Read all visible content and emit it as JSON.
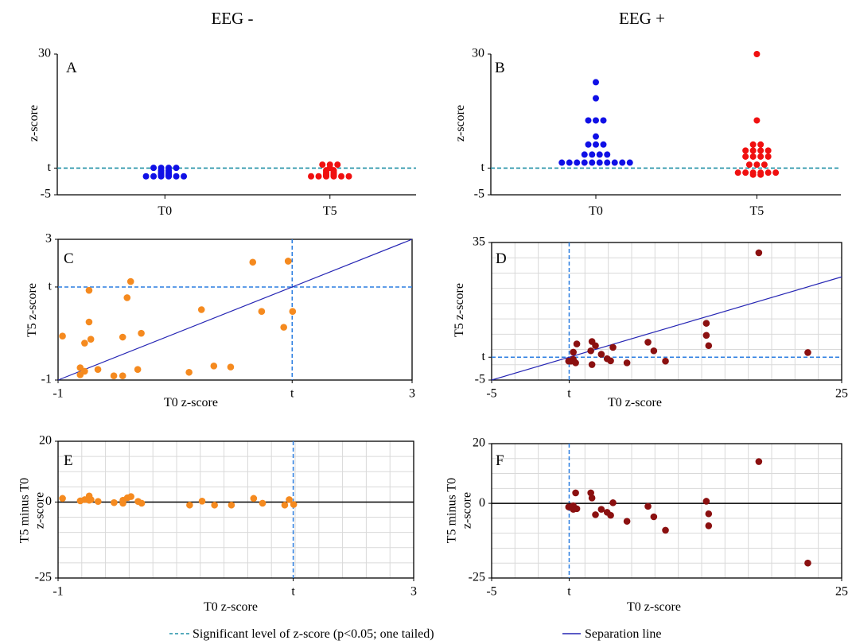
{
  "column_titles": [
    "EEG -",
    "EEG +"
  ],
  "legend": {
    "dashed_label": "Significant level of z-score (p<0.05; one tailed)",
    "solid_label": "Separation line",
    "dashed_color": "#1f8fa5",
    "solid_color": "#2525b4"
  },
  "colors": {
    "t0_blue": "#1010e6",
    "t5_red": "#f01010",
    "orange": "#f58a1f",
    "darkred": "#8b1010",
    "threshold_dashed": "#2a7de1",
    "separation": "#2525b4"
  },
  "chart_data": [
    {
      "panel": "A",
      "type": "scatter",
      "categories": [
        "T0",
        "T5"
      ],
      "ylabel": "z-score",
      "ylim": [
        -5,
        30
      ],
      "yticks": [
        "30",
        "t",
        "-5"
      ],
      "threshold_tick": "t",
      "threshold_value": 1.645,
      "threshold_line": "horizontal",
      "grid": false,
      "series": [
        {
          "category": "T0",
          "color": "#1010e6",
          "values": [
            1.1,
            0.7,
            0.3,
            0,
            -0.2,
            -0.3,
            -0.4,
            -0.4,
            -0.4,
            -0.4,
            -0.4,
            -0.4,
            -0.3,
            -0.2,
            0,
            0.3,
            0.7,
            1.1,
            1.7,
            1.7,
            1.7,
            1.7
          ]
        },
        {
          "category": "T5",
          "color": "#f01010",
          "values": [
            1.1,
            0.7,
            0.3,
            0,
            -0.2,
            -0.3,
            -0.4,
            -0.4,
            -0.4,
            -0.4,
            -0.4,
            -0.4,
            -0.3,
            -0.2,
            0,
            0.3,
            0.7,
            1.1,
            1.7,
            2.5,
            2.5,
            2.5
          ]
        }
      ]
    },
    {
      "panel": "B",
      "type": "scatter",
      "categories": [
        "T0",
        "T5"
      ],
      "ylabel": "z-score",
      "ylim": [
        -5,
        30
      ],
      "yticks": [
        "30",
        "t",
        "-5"
      ],
      "threshold_tick": "t",
      "threshold_value": 1.645,
      "threshold_line": "horizontal",
      "grid": false,
      "series": [
        {
          "category": "T0",
          "color": "#1010e6",
          "values": [
            23,
            19,
            13.5,
            13.5,
            13.5,
            9.5,
            7.5,
            7.5,
            7.5,
            5,
            5,
            5,
            5,
            3,
            3,
            3,
            3,
            3,
            3,
            3,
            3,
            3,
            3
          ]
        },
        {
          "category": "T5",
          "color": "#f01010",
          "values": [
            30,
            13.5,
            7.5,
            7.5,
            6,
            6,
            6,
            6,
            4.5,
            4.5,
            4.5,
            4.5,
            2.5,
            2.5,
            2.5,
            0.5,
            0.5,
            0.5,
            0.5,
            0.5,
            0.5,
            0,
            0
          ]
        }
      ]
    },
    {
      "panel": "C",
      "type": "scatter",
      "xlabel": "T0  z-score",
      "ylabel": "T5  z-score",
      "xlim": [
        -1,
        3
      ],
      "ylim": [
        -1,
        3
      ],
      "xticks": [
        "-1",
        "t",
        "3"
      ],
      "yticks": [
        "3",
        "t",
        "-1"
      ],
      "threshold_tick": "t",
      "threshold_value": 1.645,
      "separation_line": "y = x",
      "grid": false,
      "color": "#f58a1f",
      "points": [
        [
          -0.95,
          0.25
        ],
        [
          -0.75,
          -0.65
        ],
        [
          -0.7,
          0.05
        ],
        [
          -0.75,
          -0.85
        ],
        [
          -0.7,
          -0.75
        ],
        [
          -0.65,
          1.55
        ],
        [
          -0.65,
          0.65
        ],
        [
          -0.63,
          0.16
        ],
        [
          -0.55,
          -0.7
        ],
        [
          -0.37,
          -0.88
        ],
        [
          -0.27,
          0.22
        ],
        [
          -0.27,
          -0.88
        ],
        [
          -0.22,
          1.34
        ],
        [
          -0.18,
          1.8
        ],
        [
          -0.1,
          -0.7
        ],
        [
          -0.06,
          0.33
        ],
        [
          0.48,
          -0.78
        ],
        [
          0.62,
          1.0
        ],
        [
          0.76,
          -0.6
        ],
        [
          0.95,
          -0.63
        ],
        [
          1.2,
          2.35
        ],
        [
          1.3,
          0.95
        ],
        [
          1.55,
          0.5
        ],
        [
          1.6,
          2.38
        ],
        [
          1.6,
          2.38
        ],
        [
          1.65,
          0.95
        ]
      ]
    },
    {
      "panel": "D",
      "type": "scatter",
      "xlabel": "T0  z-score",
      "ylabel": "T5  z-score",
      "xlim": [
        -5,
        25
      ],
      "ylim": [
        -5,
        35
      ],
      "xticks": [
        "-5",
        "t",
        "25"
      ],
      "yticks": [
        "35",
        "t",
        "-5"
      ],
      "threshold_tick": "t",
      "threshold_value": 1.645,
      "separation_line": "y = x",
      "grid": true,
      "color": "#8b1010",
      "points": [
        [
          1.6,
          0.5
        ],
        [
          1.8,
          0.5
        ],
        [
          2.0,
          1.0
        ],
        [
          2.0,
          3.1
        ],
        [
          2.2,
          0.0
        ],
        [
          2.3,
          5.5
        ],
        [
          3.5,
          3.5
        ],
        [
          3.6,
          6.2
        ],
        [
          3.6,
          -0.5
        ],
        [
          3.9,
          5.0
        ],
        [
          4.4,
          2.5
        ],
        [
          4.9,
          1.2
        ],
        [
          5.2,
          0.6
        ],
        [
          5.4,
          4.5
        ],
        [
          6.6,
          0.0
        ],
        [
          8.4,
          6.0
        ],
        [
          8.9,
          3.5
        ],
        [
          9.9,
          0.5
        ],
        [
          13.4,
          11.5
        ],
        [
          13.4,
          8.0
        ],
        [
          13.6,
          5.0
        ],
        [
          17.9,
          32.0
        ],
        [
          22.1,
          3.0
        ]
      ]
    },
    {
      "panel": "E",
      "type": "scatter",
      "xlabel": "T0  z-score",
      "ylabel": "T5 minus T0 z-score",
      "xlim": [
        -1,
        3
      ],
      "ylim": [
        -25,
        20
      ],
      "xticks": [
        "-1",
        "t",
        "3"
      ],
      "yticks": [
        "20",
        "0",
        "-25"
      ],
      "threshold_tick": "t",
      "threshold_value": 1.645,
      "zero_line": true,
      "grid": true,
      "color": "#f58a1f",
      "points": [
        [
          -0.95,
          1.2
        ],
        [
          -0.75,
          0.4
        ],
        [
          -0.7,
          0.8
        ],
        [
          -0.65,
          0.6
        ],
        [
          -0.65,
          2.0
        ],
        [
          -0.63,
          0.8
        ],
        [
          -0.55,
          0.2
        ],
        [
          -0.37,
          -0.2
        ],
        [
          -0.27,
          -0.4
        ],
        [
          -0.27,
          0.6
        ],
        [
          -0.22,
          1.4
        ],
        [
          -0.18,
          1.8
        ],
        [
          -0.1,
          0.2
        ],
        [
          -0.06,
          -0.4
        ],
        [
          0.48,
          -1.0
        ],
        [
          0.62,
          0.3
        ],
        [
          0.76,
          -1.0
        ],
        [
          0.95,
          -1.0
        ],
        [
          1.2,
          1.2
        ],
        [
          1.3,
          -0.4
        ],
        [
          1.55,
          -1.0
        ],
        [
          1.6,
          0.8
        ],
        [
          1.65,
          -0.8
        ]
      ]
    },
    {
      "panel": "F",
      "type": "scatter",
      "xlabel": "T0  z-score",
      "ylabel": "T5 minus T0 z-score",
      "xlim": [
        -5,
        25
      ],
      "ylim": [
        -25,
        20
      ],
      "xticks": [
        "-5",
        "t",
        "25"
      ],
      "yticks": [
        "20",
        "0",
        "-25"
      ],
      "threshold_tick": "t",
      "threshold_value": 1.645,
      "zero_line": true,
      "grid": true,
      "color": "#8b1010",
      "points": [
        [
          1.6,
          -1.2
        ],
        [
          1.8,
          -1.2
        ],
        [
          2.0,
          -0.8
        ],
        [
          2.0,
          -2.0
        ],
        [
          2.2,
          3.5
        ],
        [
          2.3,
          -1.8
        ],
        [
          3.5,
          3.5
        ],
        [
          3.6,
          1.8
        ],
        [
          3.9,
          -3.8
        ],
        [
          4.4,
          -2.0
        ],
        [
          4.9,
          -3.0
        ],
        [
          5.2,
          -4.0
        ],
        [
          5.4,
          0.2
        ],
        [
          6.6,
          -6.0
        ],
        [
          8.4,
          -1.0
        ],
        [
          8.9,
          -4.5
        ],
        [
          9.9,
          -9.0
        ],
        [
          13.4,
          0.7
        ],
        [
          13.6,
          -3.5
        ],
        [
          13.6,
          -7.5
        ],
        [
          17.9,
          14.0
        ],
        [
          22.1,
          -20.0
        ]
      ]
    }
  ]
}
